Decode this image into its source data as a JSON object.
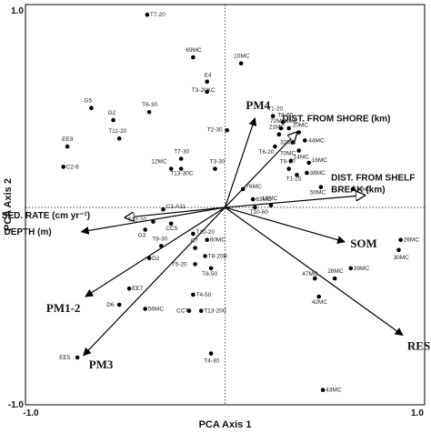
{
  "chart_data": {
    "type": "scatter",
    "title": "",
    "xlabel": "PCA Axis 1",
    "ylabel": "PCA Axis 2",
    "xlim": [
      -1.0,
      1.0
    ],
    "ylim": [
      -1.0,
      1.0
    ],
    "x_ticks": [
      {
        "value": -1.0,
        "label": "-1.0"
      },
      {
        "value": 1.0,
        "label": "1.0"
      }
    ],
    "y_ticks": [
      {
        "value": -1.0,
        "label": "-1.0"
      },
      {
        "value": 1.0,
        "label": "1.0"
      }
    ],
    "grid": false,
    "reference_lines": "dotted lines at x=0 and y=0",
    "points": [
      {
        "label": "T7-20",
        "x": -0.39,
        "y": 0.95
      },
      {
        "label": "69MC",
        "x": -0.16,
        "y": 0.74
      },
      {
        "label": "10MC",
        "x": 0.08,
        "y": 0.71
      },
      {
        "label": "E4",
        "x": -0.09,
        "y": 0.62
      },
      {
        "label": "T3-20KC",
        "x": -0.09,
        "y": 0.57
      },
      {
        "label": "G5",
        "x": -0.67,
        "y": 0.49
      },
      {
        "label": "T6-30",
        "x": -0.38,
        "y": 0.47
      },
      {
        "label": "G2",
        "x": -0.56,
        "y": 0.43
      },
      {
        "label": "T1-20",
        "x": 0.24,
        "y": 0.45
      },
      {
        "label": "T8-60",
        "x": 0.29,
        "y": 0.42
      },
      {
        "label": "72MC",
        "x": 0.28,
        "y": 0.39
      },
      {
        "label": "8MC",
        "x": 0.32,
        "y": 0.39
      },
      {
        "label": "20MC",
        "x": 0.37,
        "y": 0.37
      },
      {
        "label": "21MC",
        "x": 0.27,
        "y": 0.36
      },
      {
        "label": "T2-30",
        "x": 0.01,
        "y": 0.38
      },
      {
        "label": "44MC",
        "x": 0.4,
        "y": 0.33
      },
      {
        "label": "32MC",
        "x": 0.34,
        "y": 0.32
      },
      {
        "label": "T6-20",
        "x": 0.25,
        "y": 0.3
      },
      {
        "label": "14MC",
        "x": 0.37,
        "y": 0.28
      },
      {
        "label": "T11-20",
        "x": -0.53,
        "y": 0.34
      },
      {
        "label": "EE9",
        "x": -0.79,
        "y": 0.3
      },
      {
        "label": "T7-30",
        "x": -0.22,
        "y": 0.24
      },
      {
        "label": "C2-6",
        "x": -0.81,
        "y": 0.2
      },
      {
        "label": "12MC",
        "x": -0.27,
        "y": 0.19
      },
      {
        "label": "T13-30C",
        "x": -0.22,
        "y": 0.19
      },
      {
        "label": "T3-30",
        "x": -0.05,
        "y": 0.19
      },
      {
        "label": "70MC",
        "x": 0.33,
        "y": 0.23
      },
      {
        "label": "16MC",
        "x": 0.42,
        "y": 0.22
      },
      {
        "label": "T9-30",
        "x": 0.32,
        "y": 0.19
      },
      {
        "label": "38MC",
        "x": 0.41,
        "y": 0.17
      },
      {
        "label": "T1-25",
        "x": 0.36,
        "y": 0.16
      },
      {
        "label": "50MC",
        "x": 0.48,
        "y": 0.1
      },
      {
        "label": "24MC",
        "x": 0.64,
        "y": 0.09
      },
      {
        "label": "76MC",
        "x": 0.09,
        "y": 0.09
      },
      {
        "label": "63MC",
        "x": 0.14,
        "y": 0.04
      },
      {
        "label": "19MC",
        "x": 0.23,
        "y": 0.01
      },
      {
        "label": "T10-60",
        "x": 0.15,
        "y": -0.0
      },
      {
        "label": "C2-A11",
        "x": -0.31,
        "y": -0.01
      },
      {
        "label": "T12-20",
        "x": -0.36,
        "y": -0.07
      },
      {
        "label": "G3",
        "x": -0.4,
        "y": -0.11
      },
      {
        "label": "CC5",
        "x": -0.27,
        "y": -0.08
      },
      {
        "label": "T10-20",
        "x": -0.16,
        "y": -0.13
      },
      {
        "label": "60MC",
        "x": -0.09,
        "y": -0.16
      },
      {
        "label": "26MC",
        "x": 0.88,
        "y": -0.16
      },
      {
        "label": "30MC",
        "x": 0.87,
        "y": -0.21
      },
      {
        "label": "T8-30",
        "x": -0.32,
        "y": -0.19
      },
      {
        "label": "C7",
        "x": -0.15,
        "y": -0.2
      },
      {
        "label": "T8-20B",
        "x": -0.1,
        "y": -0.24
      },
      {
        "label": "D2",
        "x": -0.38,
        "y": -0.25
      },
      {
        "label": "T5-20",
        "x": -0.15,
        "y": -0.28
      },
      {
        "label": "T8-50",
        "x": -0.07,
        "y": -0.3
      },
      {
        "label": "39MC",
        "x": 0.63,
        "y": -0.3
      },
      {
        "label": "47MC",
        "x": 0.45,
        "y": -0.35
      },
      {
        "label": "28MC",
        "x": 0.55,
        "y": -0.35
      },
      {
        "label": "EE7",
        "x": -0.48,
        "y": -0.4
      },
      {
        "label": "T4-50",
        "x": -0.16,
        "y": -0.43
      },
      {
        "label": "42MC",
        "x": 0.47,
        "y": -0.44
      },
      {
        "label": "D6",
        "x": -0.53,
        "y": -0.48
      },
      {
        "label": "56MC",
        "x": -0.4,
        "y": -0.5
      },
      {
        "label": "CC7",
        "x": -0.18,
        "y": -0.51
      },
      {
        "label": "T13-20C",
        "x": -0.12,
        "y": -0.51
      },
      {
        "label": "EE5",
        "x": -0.74,
        "y": -0.74
      },
      {
        "label": "T4-30",
        "x": -0.07,
        "y": -0.72
      },
      {
        "label": "43MC",
        "x": 0.49,
        "y": -0.9
      }
    ],
    "vectors": [
      {
        "label": "PM4",
        "x": 0.15,
        "y": 0.44,
        "head": "filled"
      },
      {
        "label": "DIST. FROM SHORE (km)",
        "x": 0.36,
        "y": 0.37,
        "head": "open"
      },
      {
        "label": "DIST. FROM SHELF BREAK (km)",
        "x": 0.7,
        "y": 0.06,
        "head": "open"
      },
      {
        "label": "SED. RATE (cm yr⁻¹)",
        "x": -0.5,
        "y": -0.05,
        "head": "open"
      },
      {
        "label": "DEPTH (m)",
        "x": -0.72,
        "y": -0.12,
        "head": "filled"
      },
      {
        "label": "SOM",
        "x": 0.6,
        "y": -0.17,
        "head": "filled"
      },
      {
        "label": "PM1-2",
        "x": -0.7,
        "y": -0.44,
        "head": "filled"
      },
      {
        "label": "RESIN",
        "x": 0.89,
        "y": -0.63,
        "head": "filled"
      },
      {
        "label": "PM3",
        "x": -0.71,
        "y": -0.73,
        "head": "filled"
      }
    ]
  }
}
